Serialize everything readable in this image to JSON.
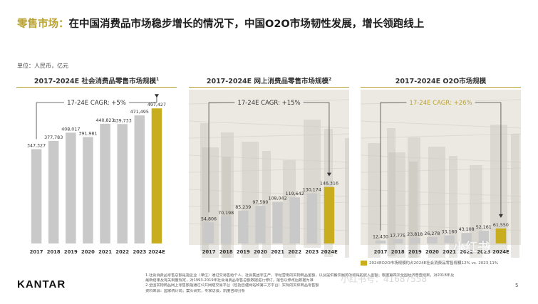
{
  "header": {
    "title_prefix": "零售市场：",
    "title_rest": "在中国消费品市场稳步增长的情况下，中国O2O市场韧性发展，增长领跑线上"
  },
  "unit_label": "单位：人民币，亿元",
  "colors": {
    "bar_gray": "#c9c9c9",
    "bar_gold": "#c8ae1e",
    "rule_gold": "#b9a232",
    "text": "#333333"
  },
  "chart_data": [
    {
      "type": "bar",
      "title": "2017-2024E 社会消费品零售市场规模",
      "title_sup": "1",
      "categories": [
        "2017",
        "2018",
        "2019",
        "2020",
        "2021",
        "2022",
        "2023",
        "2024E"
      ],
      "values": [
        347327,
        377783,
        408017,
        391981,
        440823,
        439733,
        471495,
        497427
      ],
      "value_labels": [
        "347,327",
        "377,783",
        "408,017",
        "391,981",
        "440,823",
        "439,733",
        "471,495",
        "497,427"
      ],
      "highlight_index": 7,
      "ylim": [
        0,
        540000
      ],
      "annotation": "17-24E CAGR: +5%",
      "grid": false,
      "background_photo": false
    },
    {
      "type": "bar",
      "title": "2017-2024E 网上消费品零售市场规模",
      "title_sup": "2",
      "categories": [
        "2017",
        "2018",
        "2019",
        "2020",
        "2021",
        "2022",
        "2023",
        "2024E"
      ],
      "values": [
        54806,
        70198,
        85239,
        97590,
        108042,
        119642,
        130174,
        146316
      ],
      "value_labels": [
        "54,806",
        "70,198",
        "85,239",
        "97,590",
        "108,042",
        "119,642",
        "130,174",
        "146,316"
      ],
      "highlight_index": 7,
      "ylim": [
        0,
        380000
      ],
      "annotation": "17-24E CAGR: +15%",
      "grid": false,
      "background_photo": true
    },
    {
      "type": "bar",
      "title": "2017-2024E O2O市场规模",
      "title_sup": "",
      "categories": [
        "2017",
        "2018",
        "2019",
        "2020",
        "2021",
        "2022",
        "2023",
        "2024E"
      ],
      "values": [
        12430,
        17775,
        23818,
        26278,
        33160,
        43108,
        52161,
        61550
      ],
      "value_labels": [
        "12,430",
        "17,775",
        "23,818",
        "26,278",
        "33,160",
        "43,108",
        "52,161",
        "61,550"
      ],
      "highlight_index": 7,
      "ylim": [
        0,
        600000
      ],
      "annotation": "17-24E CAGR: +26%",
      "grid": false,
      "background_photo": true
    }
  ],
  "legend": {
    "text": "2024EO2O市场规模约占2024E社会消费品零售规模12% vs. 2023 11%"
  },
  "footer": {
    "logo": "KANTAR",
    "page_number": "5",
    "notes": [
      "1.社会消费品零售总额是指企业（单位）通过交易售给个人、社会集团非生产、非经营用的实物商品金额，以及提供餐饮服务所取得的收入金额；根据第四次全国经济普查结果，对2018年及",
      "最新结果及有关制度规定，对1993-2019年社会消费品零售总额数据进行修订，报告以修改后数据为准",
      "2.全国实物商品网上零售额指通过公共网络交易平台（包括自建网站和第三方平台）实现的实体商品零售额",
      "资料来源：国家统计局，案头研究，专家访谈，凯度咨询分析"
    ]
  },
  "watermarks": [
    "小红书",
    "小红书号：41687558"
  ]
}
